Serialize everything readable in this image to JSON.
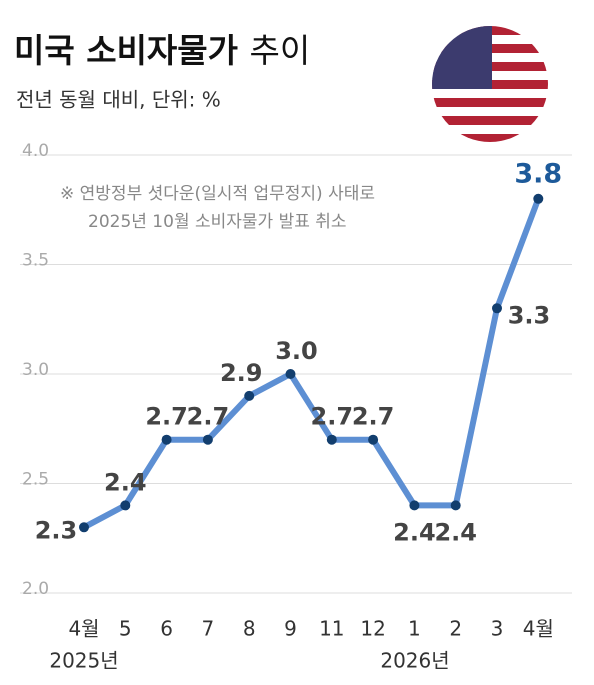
{
  "chart_data": {
    "type": "line",
    "title": "미국 소비자물가",
    "title_suffix": "추이",
    "subtitle": "전년 동월 대비, 단위: %",
    "annotation": [
      "※ 연방정부 셧다운(일시적 업무정지) 사태로",
      "2025년 10월 소비자물가 발표 취소"
    ],
    "categories": [
      "4월",
      "5",
      "6",
      "7",
      "8",
      "9",
      "11",
      "12",
      "1",
      "2",
      "3",
      "4월"
    ],
    "year_labels": [
      "2025년",
      "2026년"
    ],
    "series": [
      {
        "name": "소비자물가",
        "color": "#5d8fd3",
        "values": [
          2.3,
          2.4,
          2.7,
          2.7,
          2.9,
          3.0,
          2.7,
          2.7,
          2.4,
          2.4,
          3.3,
          3.8
        ],
        "value_labels": [
          "2.3",
          "2.4",
          "2.7",
          "2.7",
          "2.9",
          "3.0",
          "2.7",
          "2.7",
          "2.4",
          "2.4",
          "3.3",
          "3.8"
        ]
      }
    ],
    "ylim": [
      2.0,
      4.0
    ],
    "yticks": [
      {
        "value": 2,
        "label": "2.0"
      },
      2.5,
      {
        "value": 3,
        "label": "3.0"
      },
      3.5,
      {
        "value": 4,
        "label": "4.0"
      }
    ],
    "grid": true
  }
}
